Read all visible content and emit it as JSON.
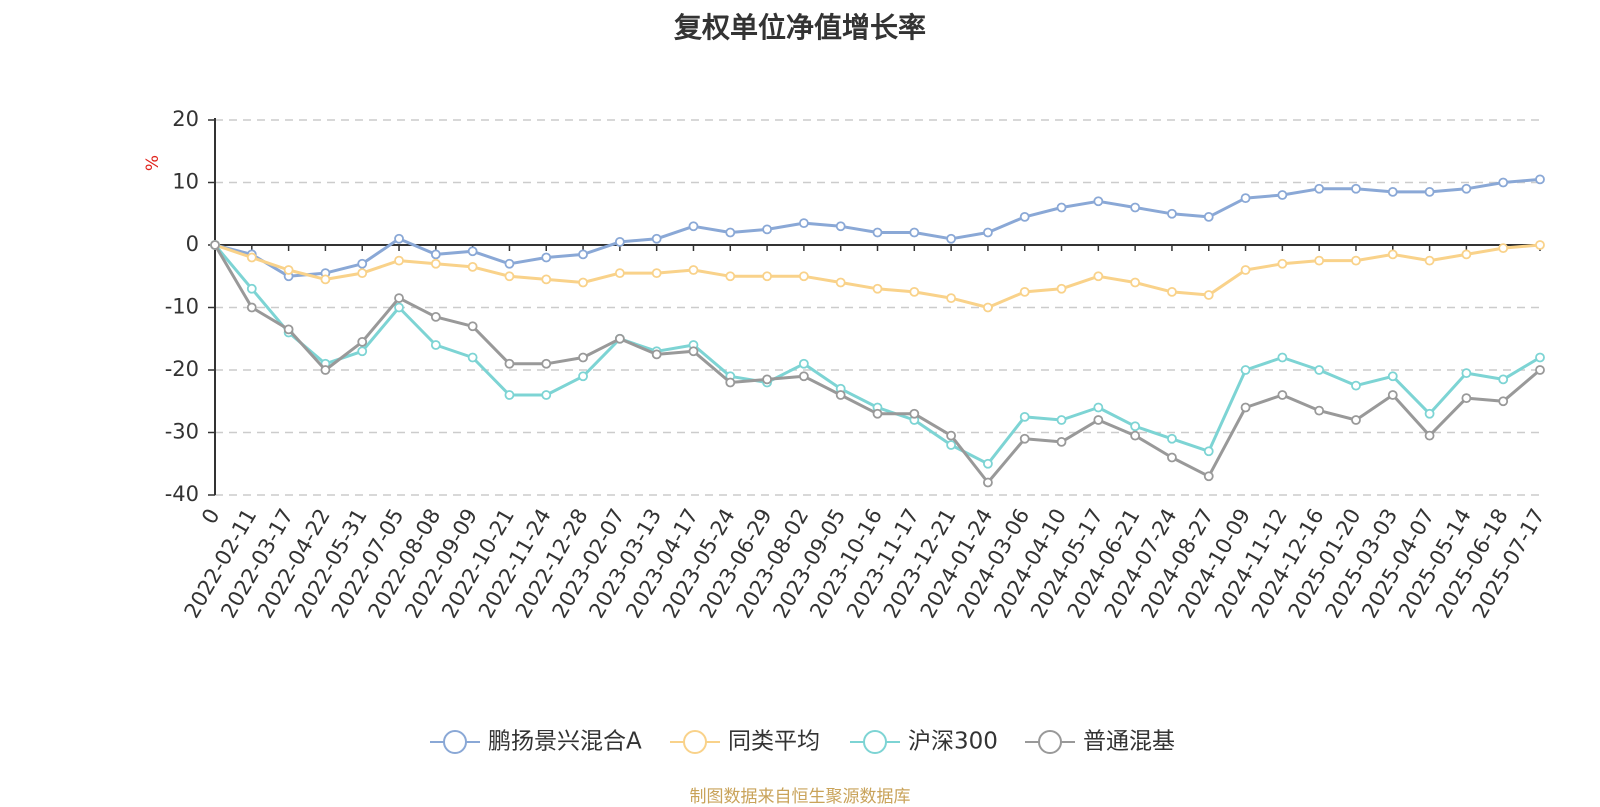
{
  "title": "复权单位净值增长率",
  "source": "制图数据来自恒生聚源数据库",
  "chart_data": {
    "type": "line",
    "title": "复权单位净值增长率",
    "ylabel": "%",
    "ylim": [
      -40,
      20
    ],
    "yticks": [
      20,
      10,
      0,
      -10,
      -20,
      -30,
      -40
    ],
    "grid": "horizontal dashed",
    "legend_position": "bottom",
    "x_labels": [
      "0",
      "2022-02-11",
      "2022-03-17",
      "2022-04-22",
      "2022-05-31",
      "2022-07-05",
      "2022-08-08",
      "2022-09-09",
      "2022-10-21",
      "2022-11-24",
      "2022-12-28",
      "2023-02-07",
      "2023-03-13",
      "2023-04-17",
      "2023-05-24",
      "2023-06-29",
      "2023-08-02",
      "2023-09-05",
      "2023-10-16",
      "2023-11-17",
      "2023-12-21",
      "2024-01-24",
      "2024-03-06",
      "2024-04-10",
      "2024-05-17",
      "2024-06-21",
      "2024-07-24",
      "2024-08-27",
      "2024-10-09",
      "2024-11-12",
      "2024-12-16",
      "2025-01-20",
      "2025-03-03",
      "2025-04-07",
      "2025-05-14",
      "2025-06-18",
      "2025-07-17"
    ],
    "series": [
      {
        "name": "鹏扬景兴混合A",
        "color": "#8aa8d6",
        "values": [
          0,
          -1.5,
          -5,
          -4.5,
          -3,
          1,
          -1.5,
          -1,
          -3,
          -2,
          -1.5,
          0.5,
          1,
          3,
          2,
          2.5,
          3.5,
          3,
          2,
          2,
          1,
          2,
          4.5,
          6,
          7,
          6,
          5,
          4.5,
          7.5,
          8,
          9,
          9,
          8.5,
          8.5,
          9,
          10,
          10.5
        ]
      },
      {
        "name": "同类平均",
        "color": "#f9d28a",
        "values": [
          0,
          -2,
          -4,
          -5.5,
          -4.5,
          -2.5,
          -3,
          -3.5,
          -5,
          -5.5,
          -6,
          -4.5,
          -4.5,
          -4,
          -5,
          -5,
          -5,
          -6,
          -7,
          -7.5,
          -8.5,
          -10,
          -7.5,
          -7,
          -5,
          -6,
          -7.5,
          -8,
          -4,
          -3,
          -2.5,
          -2.5,
          -1.5,
          -2.5,
          -1.5,
          -0.5,
          0
        ]
      },
      {
        "name": "沪深300",
        "color": "#7dd4d4",
        "values": [
          0,
          -7,
          -14,
          -19,
          -17,
          -10,
          -16,
          -18,
          -24,
          -24,
          -21,
          -15,
          -17,
          -16,
          -21,
          -22,
          -19,
          -23,
          -26,
          -28,
          -32,
          -35,
          -27.5,
          -28,
          -26,
          -29,
          -31,
          -33,
          -20,
          -18,
          -20,
          -22.5,
          -21,
          -27,
          -20.5,
          -21.5,
          -18
        ]
      },
      {
        "name": "普通混基",
        "color": "#999999",
        "values": [
          0,
          -10,
          -13.5,
          -20,
          -15.5,
          -8.5,
          -11.5,
          -13,
          -19,
          -19,
          -18,
          -15,
          -17.5,
          -17,
          -22,
          -21.5,
          -21,
          -24,
          -27,
          -27,
          -30.5,
          -38,
          -31,
          -31.5,
          -28,
          -30.5,
          -34,
          -37,
          -26,
          -24,
          -26.5,
          -28,
          -24,
          -30.5,
          -24.5,
          -25,
          -20
        ]
      }
    ]
  }
}
